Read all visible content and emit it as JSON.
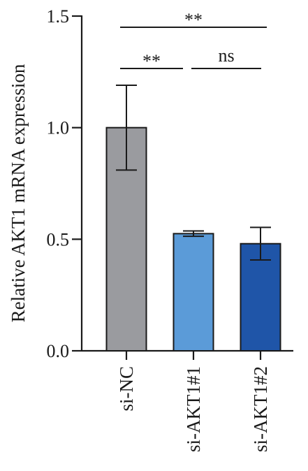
{
  "chart_data": {
    "type": "bar",
    "ylabel": "Relative AKT1 mRNA expression",
    "xlabel": "",
    "ylim": [
      0,
      1.5
    ],
    "yticks": [
      {
        "value": 0.0,
        "label": "0.0"
      },
      {
        "value": 0.5,
        "label": "0.5"
      },
      {
        "value": 1.0,
        "label": "1.0"
      },
      {
        "value": 1.5,
        "label": "1.5"
      }
    ],
    "categories": [
      "si-NC",
      "si-AKT1#1",
      "si-AKT1#2"
    ],
    "values": [
      1.0,
      0.525,
      0.48
    ],
    "errors": [
      0.19,
      0.012,
      0.073
    ],
    "colors": [
      "#9a9b9f",
      "#5b9bd8",
      "#1f55a8"
    ],
    "significance": [
      {
        "from": 0,
        "to": 1,
        "label": "**"
      },
      {
        "from": 1,
        "to": 2,
        "label": "ns"
      },
      {
        "from": 0,
        "to": 2,
        "label": "**"
      }
    ],
    "grid": false,
    "legend": "none"
  }
}
